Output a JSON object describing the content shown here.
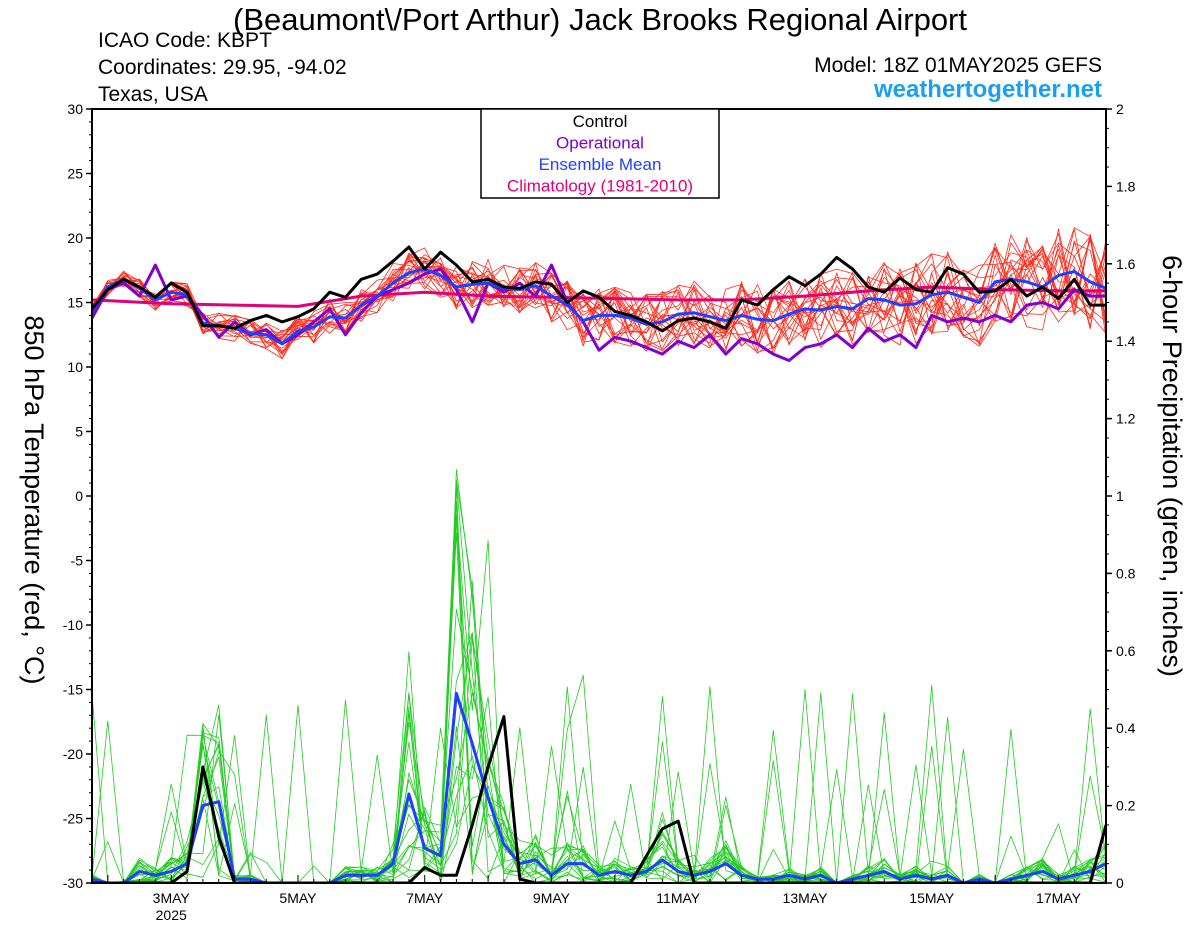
{
  "header": {
    "title": "(Beaumont\\/Port Arthur) Jack Brooks Regional Airport",
    "icao": "ICAO Code: KBPT",
    "coordinates": "Coordinates: 29.95, -94.02",
    "region": "Texas, USA",
    "model": "Model: 18Z 01MAY2025 GEFS",
    "website": "weathertogether.net"
  },
  "chart_data": {
    "type": "line",
    "ylabel_left": "850 hPa Temperature (red, °C)",
    "ylabel_right": "6-hour Precipitation (green, inches)",
    "left_ticks": [
      30,
      25,
      20,
      15,
      10,
      5,
      0,
      -5,
      -10,
      -15,
      -20,
      -25,
      -30
    ],
    "right_ticks": [
      "2",
      "1.8",
      "1.6",
      "1.4",
      "1.2",
      "1",
      "0.8",
      "0.6",
      "0.4",
      "0.2",
      "0"
    ],
    "x_ticks": [
      "3MAY",
      "5MAY",
      "7MAY",
      "9MAY",
      "11MAY",
      "13MAY",
      "15MAY",
      "17MAY"
    ],
    "x_year_label": "2025",
    "left_ylim": [
      -30,
      30
    ],
    "right_ylim": [
      0,
      2
    ],
    "xlim_days": [
      1.75,
      17.75
    ],
    "legend": {
      "position": "top-center",
      "items": [
        {
          "label": "Control",
          "color": "#000000"
        },
        {
          "label": "Operational",
          "color": "#8000d0"
        },
        {
          "label": "Ensemble Mean",
          "color": "#2040ff"
        },
        {
          "label": "Climatology (1981-2010)",
          "color": "#e0007a"
        }
      ]
    },
    "colors": {
      "members_temp": "#ff2a1a",
      "members_precip": "#22cc22",
      "control": "#000000",
      "operational": "#8000d0",
      "mean": "#2040ff",
      "climatology": "#e0007a"
    },
    "series": [
      {
        "name": "Control",
        "kind": "temperature",
        "x": [
          1.75,
          2.0,
          2.25,
          2.5,
          2.75,
          3.0,
          3.25,
          3.5,
          3.75,
          4.0,
          4.25,
          4.5,
          4.75,
          5.0,
          5.25,
          5.5,
          5.75,
          6.0,
          6.25,
          6.5,
          6.75,
          7.0,
          7.25,
          7.5,
          7.75,
          8.0,
          8.25,
          8.5,
          8.75,
          9.0,
          9.25,
          9.5,
          9.75,
          10.0,
          10.25,
          10.5,
          10.75,
          11.0,
          11.25,
          11.5,
          11.75,
          12.0,
          12.25,
          12.5,
          12.75,
          13.0,
          13.25,
          13.5,
          13.75,
          14.0,
          14.25,
          14.5,
          14.75,
          15.0,
          15.25,
          15.5,
          15.75,
          16.0,
          16.25,
          16.5,
          16.75,
          17.0,
          17.25,
          17.5,
          17.75
        ],
        "y": [
          14.5,
          16.0,
          16.8,
          16.2,
          15.4,
          16.5,
          15.8,
          13.2,
          13.2,
          13.0,
          13.6,
          14.0,
          13.5,
          13.9,
          14.5,
          15.8,
          15.4,
          16.8,
          17.2,
          18.2,
          19.3,
          17.6,
          18.9,
          17.9,
          16.6,
          16.8,
          16.2,
          16.1,
          16.6,
          16.4,
          15.0,
          15.9,
          15.4,
          14.3,
          14.0,
          13.5,
          12.8,
          13.6,
          13.8,
          13.5,
          13.0,
          15.2,
          14.8,
          16.0,
          17.0,
          16.3,
          17.2,
          18.5,
          17.6,
          16.2,
          15.8,
          16.9,
          16.0,
          15.8,
          17.7,
          17.2,
          15.8,
          15.9,
          16.8,
          15.5,
          16.2,
          15.3,
          16.8,
          14.8,
          14.8
        ]
      },
      {
        "name": "Operational",
        "kind": "temperature",
        "x": [
          1.75,
          2.0,
          2.25,
          2.5,
          2.75,
          3.0,
          3.25,
          3.5,
          3.75,
          4.0,
          4.25,
          4.5,
          4.75,
          5.0,
          5.25,
          5.5,
          5.75,
          6.0,
          6.25,
          6.5,
          6.75,
          7.0,
          7.25,
          7.5,
          7.75,
          8.0,
          8.25,
          8.5,
          8.75,
          9.0,
          9.25,
          9.5,
          9.75,
          10.0,
          10.25,
          10.5,
          10.75,
          11.0,
          11.25,
          11.5,
          11.75,
          12.0,
          12.25,
          12.5,
          12.75,
          13.0,
          13.25,
          13.5,
          13.75,
          14.0,
          14.25,
          14.5,
          14.75,
          15.0,
          15.25,
          15.5,
          15.75,
          16.0,
          16.25,
          16.5,
          16.75,
          17.0,
          17.25,
          17.5,
          17.75
        ],
        "y": [
          13.8,
          16.0,
          16.5,
          15.5,
          17.9,
          15.2,
          15.5,
          14.0,
          12.3,
          13.5,
          12.5,
          12.9,
          11.8,
          12.5,
          13.5,
          14.5,
          12.5,
          14.2,
          15.5,
          16.0,
          16.5,
          17.2,
          17.6,
          16.0,
          13.5,
          16.5,
          15.8,
          16.5,
          15.5,
          17.9,
          15.0,
          13.5,
          11.3,
          12.3,
          12.0,
          11.5,
          11.0,
          12.0,
          11.5,
          12.5,
          11.0,
          12.2,
          11.8,
          11.0,
          10.5,
          11.5,
          11.8,
          12.5,
          11.5,
          13.0,
          12.0,
          12.5,
          11.5,
          14.0,
          13.5,
          13.8,
          13.5,
          14.0,
          13.5,
          14.8,
          15.0,
          14.5,
          16.0,
          15.5,
          15.5
        ]
      },
      {
        "name": "Ensemble Mean",
        "kind": "temperature",
        "x": [
          1.75,
          2.0,
          2.25,
          2.5,
          2.75,
          3.0,
          3.25,
          3.5,
          3.75,
          4.0,
          4.25,
          4.5,
          4.75,
          5.0,
          5.25,
          5.5,
          5.75,
          6.0,
          6.25,
          6.5,
          6.75,
          7.0,
          7.25,
          7.5,
          7.75,
          8.0,
          8.25,
          8.5,
          8.75,
          9.0,
          9.25,
          9.5,
          9.75,
          10.0,
          10.25,
          10.5,
          10.75,
          11.0,
          11.25,
          11.5,
          11.75,
          12.0,
          12.25,
          12.5,
          12.75,
          13.0,
          13.25,
          13.5,
          13.75,
          14.0,
          14.25,
          14.5,
          14.75,
          15.0,
          15.25,
          15.5,
          15.75,
          16.0,
          16.25,
          16.5,
          16.75,
          17.0,
          17.25,
          17.5,
          17.75
        ],
        "y": [
          14.3,
          16.2,
          16.8,
          16.1,
          15.2,
          15.8,
          15.6,
          13.4,
          13.2,
          13.0,
          12.6,
          12.5,
          11.8,
          12.8,
          13.1,
          13.9,
          13.8,
          14.8,
          15.5,
          16.5,
          17.3,
          17.6,
          17.1,
          16.2,
          16.4,
          16.5,
          16.1,
          16.0,
          16.3,
          15.5,
          14.8,
          13.6,
          14.0,
          14.0,
          13.8,
          13.3,
          13.5,
          14.1,
          14.2,
          13.9,
          13.6,
          14.0,
          13.7,
          13.6,
          14.1,
          14.5,
          14.4,
          14.7,
          14.5,
          15.3,
          15.2,
          14.8,
          14.9,
          15.6,
          15.8,
          15.4,
          15.0,
          16.6,
          16.8,
          16.6,
          16.2,
          17.1,
          17.4,
          16.6,
          16.1
        ]
      },
      {
        "name": "Climatology (1981-2010)",
        "kind": "temperature",
        "x": [
          1.75,
          3.0,
          4.0,
          5.0,
          6.0,
          7.0,
          8.0,
          9.0,
          10.0,
          11.0,
          12.0,
          13.0,
          14.0,
          15.0,
          16.0,
          17.0,
          17.75
        ],
        "y": [
          15.2,
          14.9,
          14.8,
          14.7,
          15.5,
          15.8,
          15.5,
          15.4,
          15.3,
          15.2,
          15.2,
          15.5,
          15.9,
          16.2,
          16.0,
          15.9,
          15.9
        ]
      },
      {
        "name": "Control",
        "kind": "precipitation",
        "x": [
          1.75,
          2.0,
          2.25,
          2.5,
          2.75,
          3.0,
          3.25,
          3.5,
          3.75,
          4.0,
          4.25,
          4.5,
          4.75,
          5.0,
          5.25,
          5.5,
          5.75,
          6.0,
          6.25,
          6.5,
          6.75,
          7.0,
          7.25,
          7.5,
          7.75,
          8.0,
          8.25,
          8.5,
          8.75,
          9.0,
          9.25,
          9.5,
          9.75,
          10.0,
          10.25,
          10.5,
          10.75,
          11.0,
          11.25,
          11.5,
          11.75,
          12.0,
          12.25,
          12.5,
          12.75,
          13.0,
          13.25,
          13.5,
          13.75,
          14.0,
          14.25,
          14.5,
          14.75,
          15.0,
          15.25,
          15.5,
          15.75,
          16.0,
          16.25,
          16.5,
          16.75,
          17.0,
          17.25,
          17.5,
          17.75
        ],
        "y": [
          0.0,
          0.0,
          0.0,
          0.0,
          0.0,
          0.0,
          0.03,
          0.3,
          0.12,
          0.0,
          0.0,
          0.0,
          0.0,
          0.0,
          0.0,
          0.0,
          0.0,
          0.0,
          0.0,
          0.0,
          0.0,
          0.04,
          0.02,
          0.02,
          0.15,
          0.3,
          0.43,
          0.01,
          0.0,
          0.0,
          0.0,
          0.0,
          0.0,
          0.0,
          0.0,
          0.07,
          0.14,
          0.16,
          0.0,
          0.0,
          0.0,
          0.0,
          0.0,
          0.0,
          0.0,
          0.0,
          0.0,
          0.0,
          0.0,
          0.0,
          0.0,
          0.0,
          0.0,
          0.0,
          0.0,
          0.0,
          0.0,
          0.0,
          0.0,
          0.0,
          0.0,
          0.0,
          0.0,
          0.0,
          0.15
        ]
      },
      {
        "name": "Ensemble Mean",
        "kind": "precipitation",
        "x": [
          1.75,
          2.0,
          2.25,
          2.5,
          2.75,
          3.0,
          3.25,
          3.5,
          3.75,
          4.0,
          4.25,
          4.5,
          4.75,
          5.0,
          5.25,
          5.5,
          5.75,
          6.0,
          6.25,
          6.5,
          6.75,
          7.0,
          7.25,
          7.5,
          7.75,
          8.0,
          8.25,
          8.5,
          8.75,
          9.0,
          9.25,
          9.5,
          9.75,
          10.0,
          10.25,
          10.5,
          10.75,
          11.0,
          11.25,
          11.5,
          11.75,
          12.0,
          12.25,
          12.5,
          12.75,
          13.0,
          13.25,
          13.5,
          13.75,
          14.0,
          14.25,
          14.5,
          14.75,
          15.0,
          15.25,
          15.5,
          15.75,
          16.0,
          16.25,
          16.5,
          16.75,
          17.0,
          17.25,
          17.5,
          17.75
        ],
        "y": [
          0.01,
          0.0,
          0.0,
          0.03,
          0.02,
          0.03,
          0.05,
          0.2,
          0.21,
          0.01,
          0.01,
          0.0,
          0.0,
          0.0,
          0.0,
          0.0,
          0.02,
          0.02,
          0.02,
          0.05,
          0.23,
          0.09,
          0.07,
          0.49,
          0.36,
          0.22,
          0.1,
          0.05,
          0.06,
          0.02,
          0.05,
          0.05,
          0.02,
          0.03,
          0.02,
          0.03,
          0.06,
          0.03,
          0.02,
          0.03,
          0.05,
          0.02,
          0.01,
          0.01,
          0.02,
          0.01,
          0.02,
          0.0,
          0.01,
          0.02,
          0.03,
          0.01,
          0.02,
          0.01,
          0.02,
          0.0,
          0.01,
          0.0,
          0.01,
          0.02,
          0.03,
          0.01,
          0.02,
          0.03,
          0.05
        ]
      }
    ]
  }
}
